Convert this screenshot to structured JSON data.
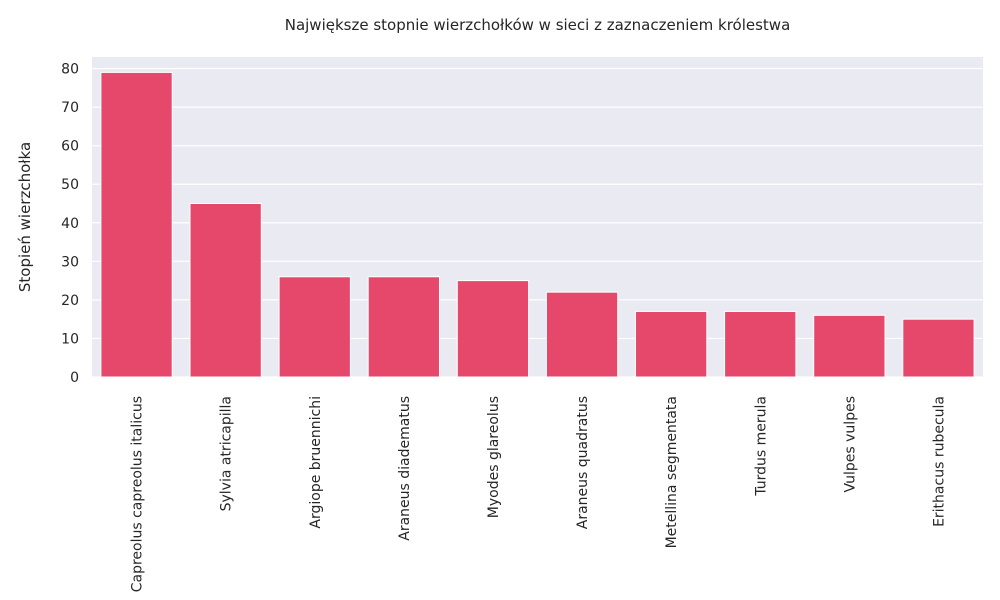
{
  "chart_data": {
    "type": "bar",
    "title": "Największe stopnie wierzchołków w sieci z zaznaczeniem królestwa",
    "xlabel": "",
    "ylabel": "Stopień wierzchołka",
    "categories": [
      "Capreolus capreolus italicus",
      "Sylvia atricapilla",
      "Argiope bruennichi",
      "Araneus diadematus",
      "Myodes glareolus",
      "Araneus quadratus",
      "Metellina segmentata",
      "Turdus merula",
      "Vulpes vulpes",
      "Erithacus rubecula"
    ],
    "values": [
      79,
      45,
      26,
      26,
      25,
      22,
      17,
      17,
      16,
      15
    ],
    "ylim": [
      0,
      83
    ],
    "yticks": [
      0,
      10,
      20,
      30,
      40,
      50,
      60,
      70,
      80
    ],
    "grid": true,
    "bar_color": "#e5486a",
    "background_color": "#eaeaf2"
  }
}
